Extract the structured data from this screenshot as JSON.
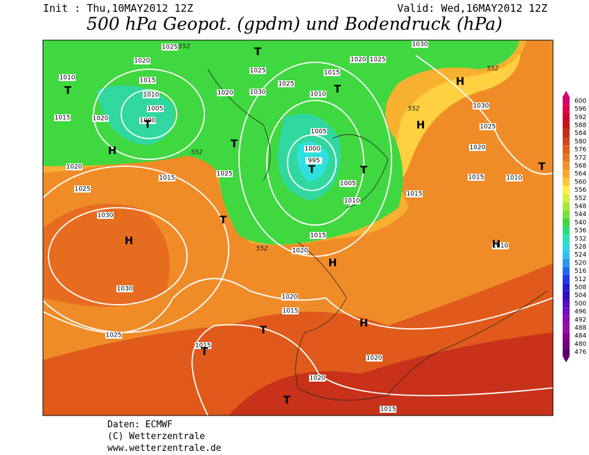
{
  "header": {
    "init": "Init : Thu,10MAY2012 12Z",
    "valid": "Valid: Wed,16MAY2012 12Z",
    "title": "500 hPa Geopot. (gpdm) und Bodendruck (hPa)"
  },
  "map": {
    "pressure_labels": [
      "1025",
      "552",
      "1020",
      "1010",
      "1015",
      "1010",
      "1005",
      "1000",
      "1015",
      "1020",
      "1020",
      "1030",
      "1025",
      "1025",
      "1015",
      "1010",
      "1020",
      "1025",
      "1030",
      "1005",
      "1000",
      "995",
      "1005",
      "1010",
      "1015",
      "1015",
      "1020",
      "1020",
      "1025",
      "1015",
      "1025",
      "1030",
      "1030",
      "1025",
      "1020",
      "1015",
      "1015",
      "1020",
      "1020",
      "1015",
      "1030",
      "1025",
      "1020",
      "1015",
      "1010",
      "1010",
      "552",
      "552",
      "552",
      "552"
    ],
    "centers": [
      "T",
      "H",
      "T",
      "T",
      "T",
      "H",
      "H",
      "H",
      "T",
      "T",
      "T",
      "H",
      "T",
      "H",
      "T",
      "T",
      "H",
      "T",
      "T"
    ]
  },
  "legend": {
    "levels": [
      600,
      596,
      592,
      588,
      584,
      580,
      576,
      572,
      568,
      564,
      560,
      556,
      552,
      548,
      544,
      540,
      536,
      532,
      528,
      524,
      520,
      516,
      512,
      508,
      504,
      500,
      496,
      492,
      488,
      484,
      480,
      476
    ],
    "colors": [
      "#d8006c",
      "#e0004c",
      "#d00030",
      "#c01818",
      "#c03018",
      "#d04818",
      "#e06018",
      "#e87820",
      "#f09028",
      "#f8a830",
      "#ffc838",
      "#fff048",
      "#d8f040",
      "#a8e838",
      "#78e038",
      "#40d840",
      "#30d880",
      "#30e0b8",
      "#30d8e0",
      "#30c0f0",
      "#2898f0",
      "#2068f0",
      "#2038f0",
      "#2020d0",
      "#3010c0",
      "#5010c0",
      "#7010c0",
      "#8810b0",
      "#9810a0",
      "#880090",
      "#700080",
      "#580068"
    ]
  },
  "footer": {
    "source": "Daten: ECMWF",
    "copyright": "(C) Wetterzentrale",
    "url": "www.wetterzentrale.de"
  }
}
